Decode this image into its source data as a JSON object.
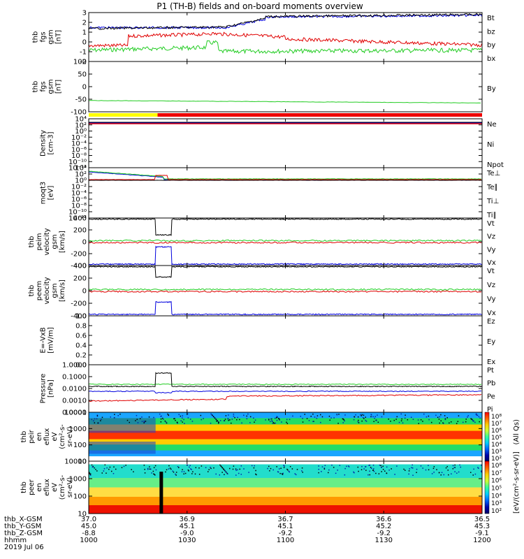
{
  "title": "P1 (TH-B) fields and on-board moments overview",
  "colors": {
    "black": "#000000",
    "red": "#e00000",
    "green": "#22cc22",
    "blue": "#0000dd",
    "yellow": "#ffff00",
    "barRed": "#ee0000"
  },
  "panels": [
    {
      "ylabel": [
        "thb",
        "fgs",
        "gsm",
        "[nT]"
      ],
      "ticks": [
        "3",
        "2",
        "1",
        "0",
        "-1",
        "-2"
      ],
      "ylim": [
        -2,
        3
      ],
      "legend": [
        {
          "label": "Bt",
          "color": "#000000"
        },
        {
          "label": "bz",
          "color": "#e00000"
        },
        {
          "label": "by",
          "color": "#22cc22"
        },
        {
          "label": "bx",
          "color": "#0000dd"
        }
      ]
    },
    {
      "ylabel": [
        "thb",
        "fgs",
        "gsm",
        "[nT]"
      ],
      "ticks": [
        "100",
        "50",
        "0",
        "-50",
        "-100"
      ],
      "ylim": [
        -100,
        100
      ],
      "legend": [
        {
          "label": "By",
          "color": "#22cc22"
        }
      ]
    },
    {
      "ylabel": [
        "Density",
        "[cm-3]"
      ],
      "ticks": [
        "10⁴",
        "10²",
        "10⁰",
        "10⁻²",
        "10⁻⁴",
        "10⁻⁶",
        "10⁻⁸",
        "10⁻¹⁰",
        "10⁻¹²"
      ],
      "legend": [
        {
          "label": "Ne",
          "color": "#e00000"
        },
        {
          "label": "Ni",
          "color": "#000000"
        },
        {
          "label": "Npot",
          "color": "#0000dd"
        }
      ]
    },
    {
      "ylabel": [
        "moqt3",
        "[eV]"
      ],
      "ticks": [
        "10⁴",
        "10²",
        "10⁰",
        "10⁻²",
        "10⁻⁴",
        "10⁻⁶",
        "10⁻⁸",
        "10⁻¹⁰",
        "10⁻¹²"
      ],
      "legend": [
        {
          "label": "Te⊥",
          "color": "#e00000"
        },
        {
          "label": "Te∥",
          "color": "#000000"
        },
        {
          "label": "Ti⊥",
          "color": "#0000dd"
        },
        {
          "label": "Ti∥",
          "color": "#22cc22"
        }
      ]
    },
    {
      "ylabel": [
        "thb",
        "peim",
        "velocity",
        "gsm",
        "[km/s]"
      ],
      "ticks": [
        "400",
        "200",
        "0",
        "-200",
        "-400"
      ],
      "ylim": [
        -400,
        400
      ],
      "legend": [
        {
          "label": "Vt",
          "color": "#000000"
        },
        {
          "label": "Vz",
          "color": "#e00000"
        },
        {
          "label": "Vy",
          "color": "#22cc22"
        },
        {
          "label": "Vx",
          "color": "#0000dd"
        }
      ]
    },
    {
      "ylabel": [
        "thb",
        "peem",
        "velocity",
        "gsm",
        "[km/s]"
      ],
      "ticks": [
        "400",
        "200",
        "0",
        "-200",
        "-400"
      ],
      "ylim": [
        -400,
        400
      ],
      "legend": [
        {
          "label": "Vt",
          "color": "#000000"
        },
        {
          "label": "Vz",
          "color": "#e00000"
        },
        {
          "label": "Vy",
          "color": "#22cc22"
        },
        {
          "label": "Vx",
          "color": "#0000dd"
        }
      ]
    },
    {
      "ylabel": [
        "E=-VxB",
        "[mV/m]"
      ],
      "ticks": [
        "1.0",
        "0.8",
        "0.6",
        "0.4",
        "0.2",
        "0.0"
      ],
      "ylim": [
        0,
        1
      ],
      "legend": [
        {
          "label": "Ez",
          "color": "#e00000"
        },
        {
          "label": "Ey",
          "color": "#22cc22"
        },
        {
          "label": "Ex",
          "color": "#0000dd"
        }
      ]
    },
    {
      "ylabel": [
        "Pressure",
        "[nPa]"
      ],
      "ticks": [
        "1.0000",
        "0.1000",
        "0.0100",
        "0.0010",
        "0.0001"
      ],
      "legend": [
        {
          "label": "Pt",
          "color": "#000000"
        },
        {
          "label": "Pb",
          "color": "#e00000"
        },
        {
          "label": "Pe",
          "color": "#22cc22"
        },
        {
          "label": "Pi",
          "color": "#0000dd"
        }
      ]
    },
    {
      "ylabel": [
        "thb",
        "peir",
        "en",
        "eflux",
        "eV",
        "(cm²-s-",
        "sr-eV)"
      ],
      "ticks": [
        "10000",
        "1000",
        "100",
        "10"
      ]
    },
    {
      "ylabel": [
        "thb",
        "peer",
        "en",
        "eflux",
        "eV",
        "(cm²-s-",
        "sr-eV)"
      ],
      "ticks": [
        "10000",
        "1000",
        "100",
        "10"
      ]
    }
  ],
  "colorbar": {
    "label": "[eV/(cm²-s-sr-eV)]",
    "side_label": "(All Qs)",
    "ticks_top": [
      "10⁸",
      "10⁷",
      "10⁶",
      "10⁵",
      "10⁴",
      "10³",
      "10²"
    ],
    "ticks_bottom": [
      "10⁸",
      "10⁷",
      "10⁶",
      "10⁵",
      "10⁴",
      "10³",
      "10²"
    ]
  },
  "footer": {
    "row_labels": [
      "thb_X-GSM",
      "thb_Y-GSM",
      "thb_Z-GSM",
      "hhmm",
      "2019 Jul 06"
    ],
    "columns": [
      {
        "values": [
          "37.0",
          "45.0",
          "-8.8",
          "1000"
        ]
      },
      {
        "values": [
          "36.9",
          "45.1",
          "-9.0",
          "1030"
        ]
      },
      {
        "values": [
          "36.7",
          "45.1",
          "-9.2",
          "1100"
        ]
      },
      {
        "values": [
          "36.6",
          "45.2",
          "-9.2",
          "1130"
        ]
      },
      {
        "values": [
          "36.5",
          "45.3",
          "-9.1",
          "1200"
        ]
      }
    ]
  },
  "chart_data": {
    "type": "line",
    "title": "P1 (TH-B) fields and on-board moments overview",
    "x": [
      "1000",
      "1030",
      "1100",
      "1130",
      "1200"
    ],
    "xlabel": "hhmm",
    "series": [
      {
        "name": "Bt",
        "values": [
          1.5,
          2.0,
          2.7,
          2.8,
          2.9
        ]
      },
      {
        "name": "bz",
        "values": [
          -0.2,
          1.0,
          0.4,
          0.0,
          -0.7
        ]
      },
      {
        "name": "by",
        "values": [
          -0.8,
          0.0,
          -1.0,
          -0.9,
          -0.8
        ]
      },
      {
        "name": "bx",
        "values": [
          1.6,
          1.5,
          2.7,
          2.8,
          2.8
        ]
      }
    ],
    "ylim": [
      -2,
      3
    ]
  }
}
